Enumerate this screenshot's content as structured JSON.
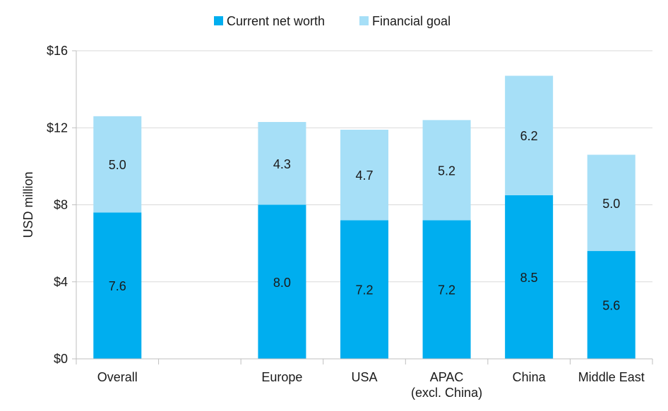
{
  "chart_data": {
    "type": "bar",
    "stacked": true,
    "title": "",
    "xlabel": "",
    "ylabel": "USD million",
    "ylim": [
      0,
      16
    ],
    "y_ticks": [
      0,
      4,
      8,
      12,
      16
    ],
    "y_tick_labels": [
      "$0",
      "$4",
      "$8",
      "$12",
      "$16"
    ],
    "grid": "horizontal",
    "legend_position": "top-center",
    "categories": [
      "Overall",
      "",
      "Europe",
      "USA",
      "APAC\n(excl. China)",
      "China",
      "Middle East"
    ],
    "series": [
      {
        "name": "Current net worth",
        "color": "#00aeef",
        "values": [
          7.6,
          null,
          8.0,
          7.2,
          7.2,
          8.5,
          5.6
        ]
      },
      {
        "name": "Financial goal",
        "color": "#a6dff7",
        "values": [
          5.0,
          null,
          4.3,
          4.7,
          5.2,
          6.2,
          5.0
        ]
      }
    ],
    "data_labels": [
      [
        "7.6",
        "",
        "8.0",
        "7.2",
        "7.2",
        "8.5",
        "5.6"
      ],
      [
        "5.0",
        "",
        "4.3",
        "4.7",
        "5.2",
        "6.2",
        "5.0"
      ]
    ]
  },
  "colors": {
    "axis": "#bfbfbf",
    "grid": "#d9d9d9",
    "text": "#1a1a1a"
  }
}
